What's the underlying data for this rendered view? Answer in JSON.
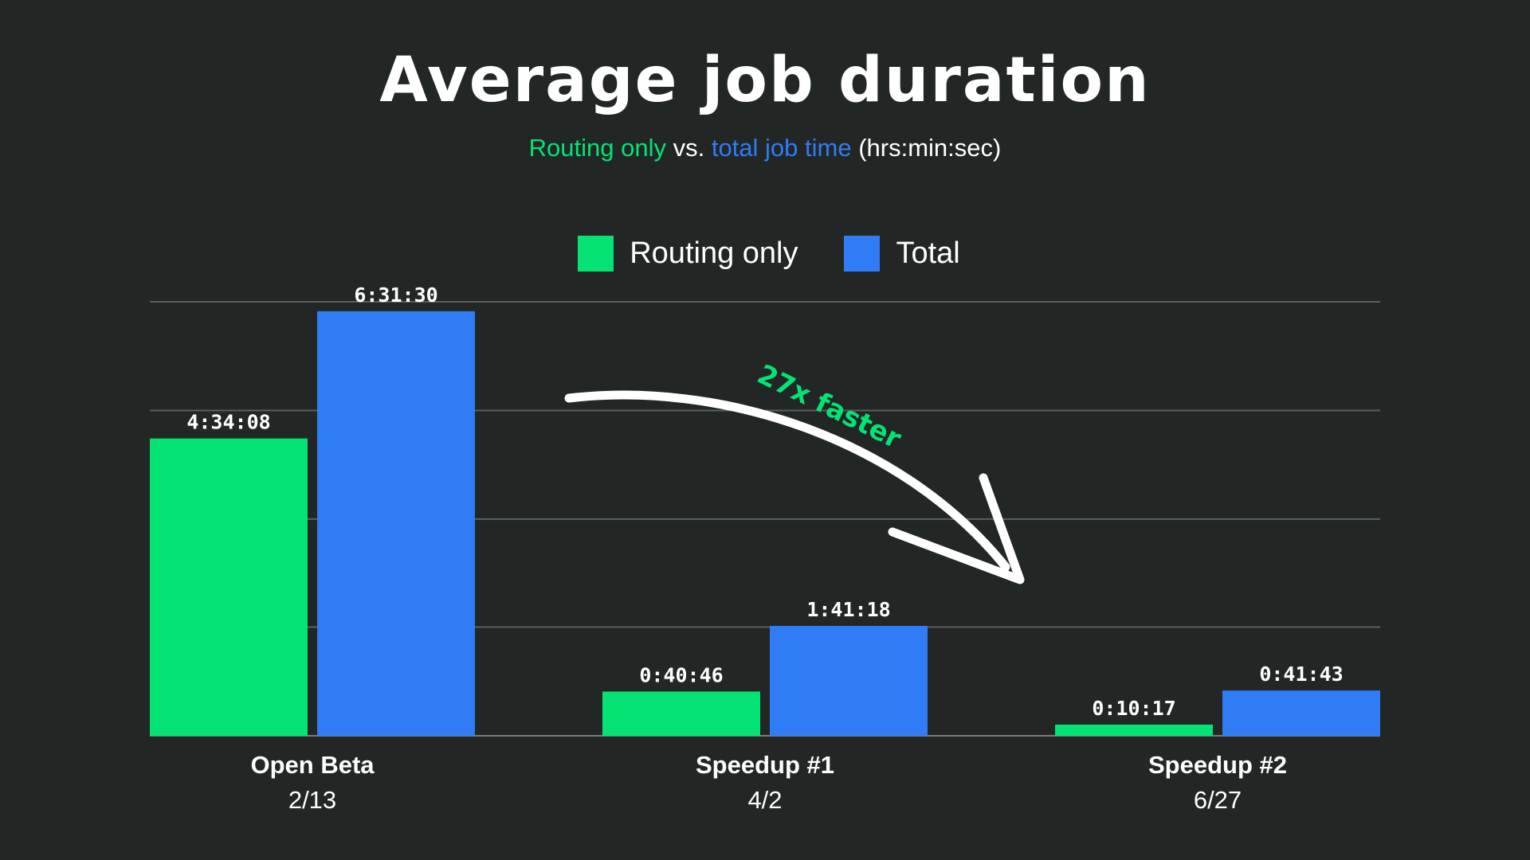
{
  "title": "Average job duration",
  "subtitle": {
    "part1": "Routing only",
    "part2": " vs. ",
    "part3": "total job time",
    "part4": " (hrs:min:sec)"
  },
  "colors": {
    "background": "#222725",
    "routing": "#05e374",
    "total": "#2f7cf5",
    "grid": "#5a5f5d"
  },
  "chart_data": {
    "type": "bar",
    "categories": [
      "Open Beta",
      "Speedup #1",
      "Speedup #2"
    ],
    "category_dates": [
      "2/13",
      "4/2",
      "6/27"
    ],
    "series": [
      {
        "name": "Routing only",
        "values": [
          4.5689,
          0.6794,
          0.1714
        ],
        "value_labels": [
          "4:34:08",
          "0:40:46",
          "0:10:17"
        ]
      },
      {
        "name": "Total",
        "values": [
          6.525,
          1.6883,
          0.6953
        ],
        "value_labels": [
          "6:31:30",
          "1:41:18",
          "0:41:43"
        ]
      }
    ],
    "ylim": [
      0,
      6.67
    ],
    "gridlines": [
      1.67,
      3.33,
      5.0,
      6.67
    ],
    "legend_position": "top-center",
    "annotation": "27x faster"
  }
}
